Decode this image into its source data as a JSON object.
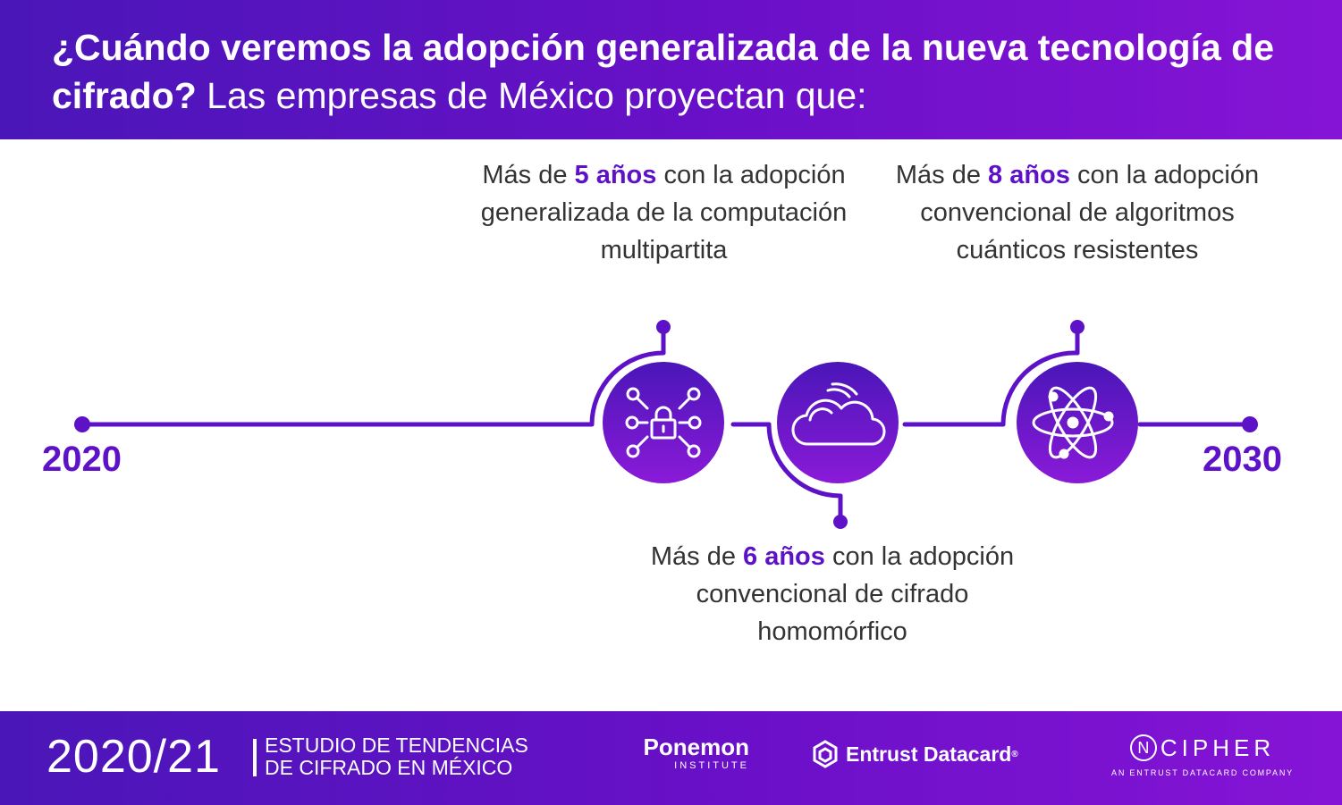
{
  "header": {
    "title_bold": "¿Cuándo veremos la adopción generalizada de la nueva tecnología de cifrado?",
    "title_regular": "Las empresas de México proyectan que:"
  },
  "timeline": {
    "start_year": "2020",
    "end_year": "2030",
    "milestones": [
      {
        "prefix": "Más de",
        "highlight": "5 años",
        "text": "con la adopción generalizada de la computación multipartita",
        "icon": "network-lock-icon"
      },
      {
        "prefix": "Más de",
        "highlight": "6 años",
        "text": "con la adopción convencional de cifrado homomórfico",
        "icon": "cloud-icon"
      },
      {
        "prefix": "Más de",
        "highlight": "8 años",
        "text": "con la adopción convencional de algoritmos cuánticos resistentes",
        "icon": "atom-icon"
      }
    ]
  },
  "colors": {
    "primary": "#5d12c8",
    "header_start": "#4a16b8",
    "header_end": "#8614d6",
    "text": "#333333"
  },
  "footer": {
    "year": "2020/21",
    "study_line1": "Estudio de tendencias",
    "study_line2": "de cifrado en México",
    "ponemon_name": "Ponemon",
    "ponemon_sub": "INSTITUTE",
    "entrust_name": "Entrust Datacard",
    "entrust_mark": "®",
    "ncipher_n": "N",
    "ncipher_rest": "CIPHER",
    "ncipher_sub": "AN ENTRUST DATACARD COMPANY"
  }
}
